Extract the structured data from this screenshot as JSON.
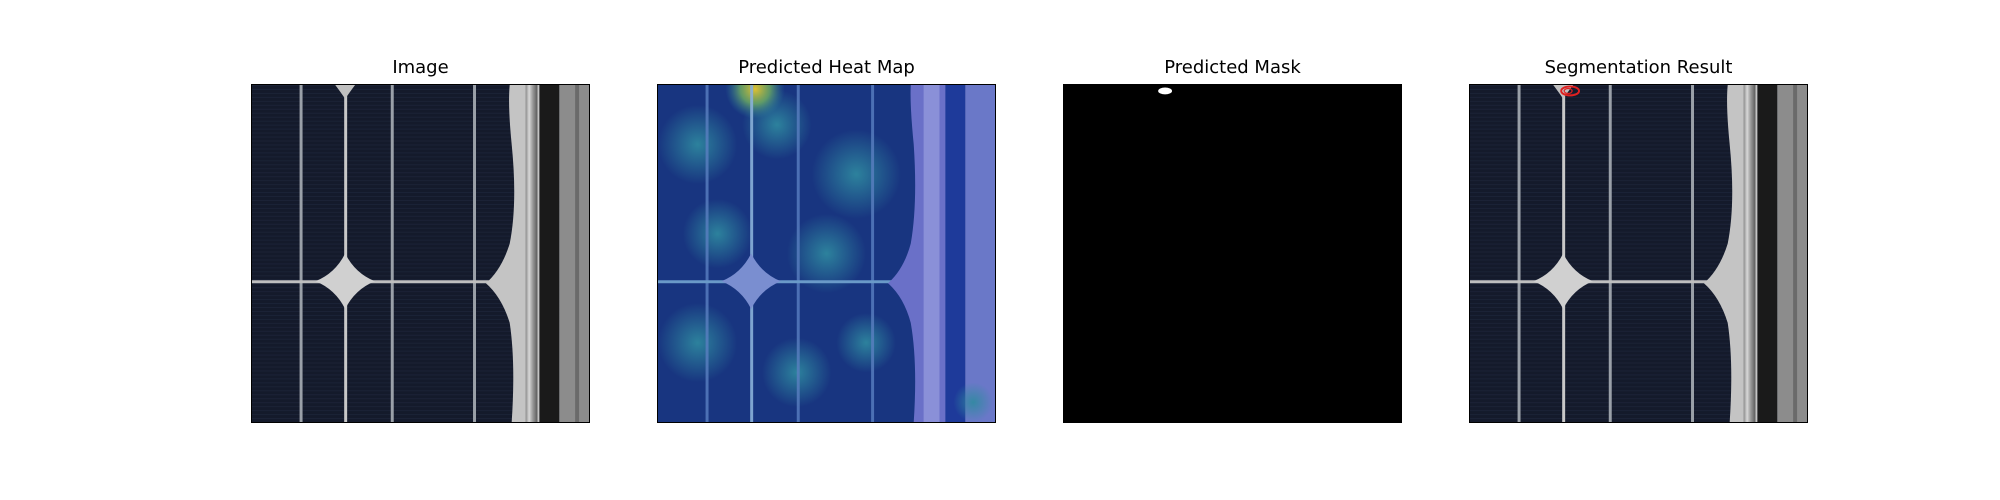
{
  "panels": [
    {
      "title": "Image"
    },
    {
      "title": "Predicted Heat Map"
    },
    {
      "title": "Predicted Mask"
    },
    {
      "title": "Segmentation Result"
    }
  ],
  "colors": {
    "cell_dark": "#151a2a",
    "busbar": "#c8c8c8",
    "frame_light": "#b0b0b0",
    "heat_low": "#1a3a8a",
    "heat_mid": "#2a7a9a",
    "heat_high": "#c8b030",
    "mask_bg": "#000000",
    "mask_fg": "#ffffff",
    "contour": "#e02020"
  },
  "icons": {
    "defect_marker": "red-contour-icon"
  }
}
